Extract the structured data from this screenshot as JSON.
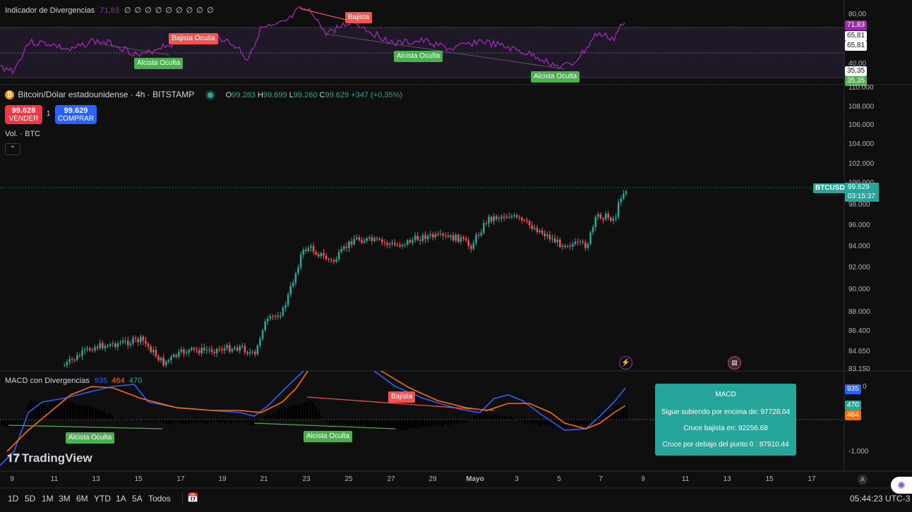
{
  "colors": {
    "up": "#26a69a",
    "down": "#ef5350",
    "rsi": "#9c27b0",
    "macd": "#2962ff",
    "signal": "#ff6d00",
    "bg": "#0f0f0f"
  },
  "indicator": {
    "title": "Indicador de Divergencias",
    "value": "71,83",
    "zeros": "∅ ∅ ∅ ∅ ∅ ∅ ∅ ∅ ∅",
    "axis": [
      "80,00",
      "40,00"
    ],
    "tags": {
      "current": "71,83",
      "upper1": "65,81",
      "upper2": "65,81",
      "lower1": "35,35",
      "lower2": "35,35"
    },
    "labels": [
      "Bajista",
      "Bajista Oculta",
      "Alcista Oculta",
      "Alcista Oculta",
      "Alcista Oculta"
    ]
  },
  "symbol": {
    "icon": "bitcoin-icon",
    "name": "Bitcoin/Dólar estadounidense · 4h · BITSTAMP",
    "o_label": "O",
    "o": "99.283",
    "h_label": "H",
    "h": "99.699",
    "l_label": "L",
    "l": "99.260",
    "c_label": "C",
    "c": "99.629",
    "change": "+347 (+0,35%)"
  },
  "trade": {
    "sell_price": "99.628",
    "sell_label": "VENDER",
    "spread": "1",
    "buy_price": "99.629",
    "buy_label": "COMPRAR"
  },
  "volume_label": "Vol. · BTC",
  "price_axis": [
    "110.000",
    "108.000",
    "106.000",
    "104.000",
    "102.000",
    "98.000",
    "96.000",
    "94.000",
    "92.000",
    "90.000",
    "88.000",
    "86.400",
    "84.650",
    "83.150"
  ],
  "price_axis_partial": "100.000",
  "last_price": {
    "ticker": "BTCUSD",
    "price": "99.629",
    "countdown": "03:15:37"
  },
  "macd": {
    "title": "MACD con Divergencias",
    "v1": "935",
    "v2": "464",
    "v3": "470",
    "axis": [
      "0",
      "-1.000"
    ],
    "tags": {
      "macd": "935",
      "hist": "470",
      "signal": "464"
    },
    "labels": [
      "Bajista",
      "Alcista Oculta",
      "Alcista Oculta"
    ],
    "box": {
      "title": "MACD",
      "line1": "Sigue subiendo por encima de: 97728.04",
      "line2": "Cruce bajista en: 92256.68",
      "line3": "Cruce por debajo del punto 0 : 87910.44"
    }
  },
  "time_axis": [
    "9",
    "11",
    "13",
    "15",
    "17",
    "19",
    "21",
    "23",
    "25",
    "27",
    "29",
    "Mayo",
    "3",
    "5",
    "7",
    "9",
    "11",
    "13",
    "15",
    "17"
  ],
  "bottom_bar": {
    "timeframes": [
      "1D",
      "5D",
      "1M",
      "3M",
      "6M",
      "YTD",
      "1A",
      "5A",
      "Todos"
    ],
    "clock": "05:44:23 UTC-3",
    "auto": "A"
  },
  "brand": "TradingView"
}
